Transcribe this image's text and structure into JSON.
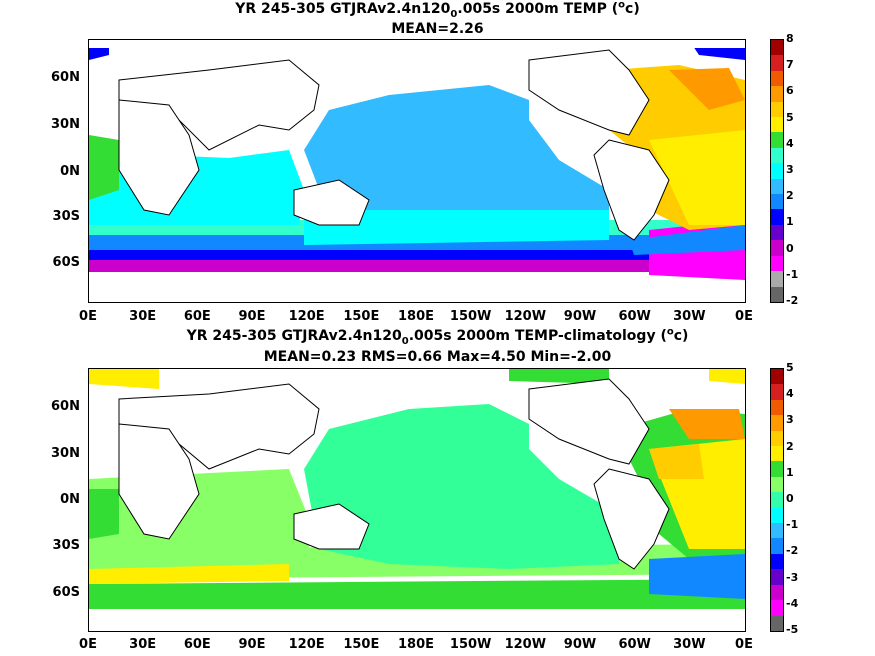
{
  "panel_top": {
    "title_prefix": "YR 245-305 GTJRAv2.4n120",
    "title_sub": "0",
    "title_suffix": ".005s 2000m TEMP (",
    "title_sup": "o",
    "title_end": "c)",
    "stats": "MEAN=2.26",
    "colorbar_labels": [
      "8",
      "7",
      "6",
      "5",
      "4",
      "3",
      "2",
      "1",
      "0",
      "-1",
      "-2"
    ],
    "colorbar_colors": [
      "#a00000",
      "#d62020",
      "#f05a00",
      "#ff9900",
      "#ffcc00",
      "#ffee00",
      "#33dd33",
      "#33ffcc",
      "#00ffff",
      "#33bbff",
      "#1188ff",
      "#0000ff",
      "#6600cc",
      "#cc00cc",
      "#ff00ff",
      "#aaaaaa",
      "#666666"
    ]
  },
  "panel_bottom": {
    "title_prefix": "YR 245-305 GTJRAv2.4n120",
    "title_sub": "0",
    "title_suffix": ".005s 2000m TEMP-climatology (",
    "title_sup": "o",
    "title_end": "c)",
    "stats": "MEAN=0.23   RMS=0.66   Max=4.50   Min=-2.00",
    "colorbar_labels": [
      "5",
      "4",
      "3",
      "2",
      "1",
      "0",
      "-1",
      "-2",
      "-3",
      "-4",
      "-5"
    ],
    "colorbar_colors": [
      "#a00000",
      "#d62020",
      "#f05a00",
      "#ff9900",
      "#ffcc00",
      "#ffee00",
      "#33dd33",
      "#88ff66",
      "#33ffaa",
      "#00ffff",
      "#33bbff",
      "#1188ff",
      "#0000ff",
      "#6600cc",
      "#cc00cc",
      "#ff00ff",
      "#666666"
    ]
  },
  "axes": {
    "lat_labels": [
      "60N",
      "30N",
      "0N",
      "30S",
      "60S"
    ],
    "lon_labels": [
      "0E",
      "30E",
      "60E",
      "90E",
      "120E",
      "150E",
      "180E",
      "150W",
      "120W",
      "90W",
      "60W",
      "30W",
      "0E"
    ]
  }
}
